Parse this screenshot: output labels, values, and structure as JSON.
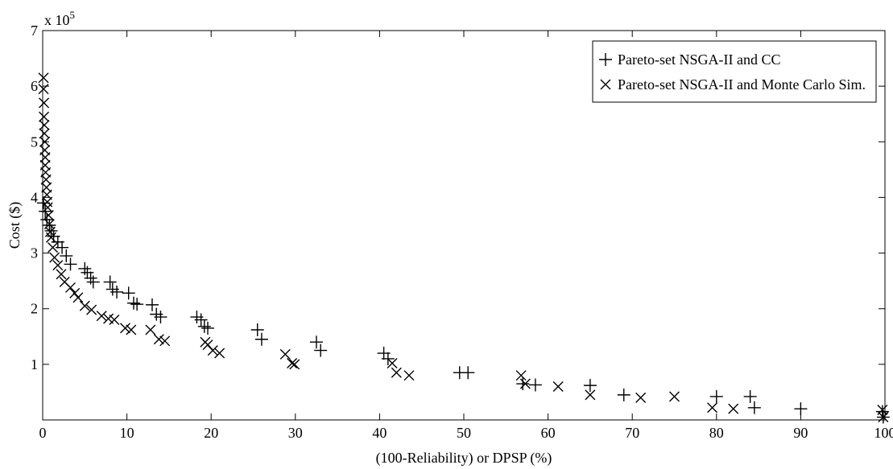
{
  "chart_data": {
    "type": "scatter",
    "title": "",
    "xlabel": "(100-Reliability) or DPSP (%)",
    "ylabel": "Cost ($)",
    "y_multiplier_label": "x 10",
    "y_multiplier_exponent": "5",
    "xlim": [
      0,
      100
    ],
    "ylim": [
      0,
      7
    ],
    "xticks": [
      "0",
      "10",
      "20",
      "30",
      "40",
      "50",
      "60",
      "70",
      "80",
      "90",
      "100"
    ],
    "yticks": [
      "1",
      "2",
      "3",
      "4",
      "5",
      "6",
      "7"
    ],
    "grid": false,
    "legend_position": "top-right",
    "series": [
      {
        "name": "Pareto-set NSGA-II and CC",
        "marker": "plus",
        "points": [
          [
            0.1,
            3.9
          ],
          [
            0.3,
            3.75
          ],
          [
            0.5,
            3.6
          ],
          [
            0.8,
            3.5
          ],
          [
            1.0,
            3.4
          ],
          [
            1.3,
            3.3
          ],
          [
            1.8,
            3.2
          ],
          [
            2.3,
            3.1
          ],
          [
            2.8,
            2.95
          ],
          [
            3.3,
            2.8
          ],
          [
            5.0,
            2.72
          ],
          [
            5.3,
            2.65
          ],
          [
            5.7,
            2.55
          ],
          [
            6.0,
            2.48
          ],
          [
            8.0,
            2.48
          ],
          [
            8.3,
            2.35
          ],
          [
            8.8,
            2.3
          ],
          [
            10.2,
            2.28
          ],
          [
            10.8,
            2.1
          ],
          [
            11.2,
            2.08
          ],
          [
            13.0,
            2.07
          ],
          [
            13.5,
            1.9
          ],
          [
            14.0,
            1.85
          ],
          [
            18.3,
            1.85
          ],
          [
            18.8,
            1.8
          ],
          [
            19.2,
            1.68
          ],
          [
            19.6,
            1.65
          ],
          [
            25.5,
            1.62
          ],
          [
            26.0,
            1.45
          ],
          [
            32.5,
            1.4
          ],
          [
            33.0,
            1.25
          ],
          [
            40.5,
            1.2
          ],
          [
            41.0,
            1.1
          ],
          [
            49.5,
            0.85
          ],
          [
            50.5,
            0.85
          ],
          [
            57.0,
            0.65
          ],
          [
            58.5,
            0.63
          ],
          [
            65.0,
            0.62
          ],
          [
            69.0,
            0.45
          ],
          [
            80.0,
            0.42
          ],
          [
            84.0,
            0.42
          ],
          [
            84.5,
            0.22
          ],
          [
            90.0,
            0.2
          ],
          [
            99.7,
            0.15
          ],
          [
            99.8,
            0.05
          ]
        ]
      },
      {
        "name": "Pareto-set NSGA-II and Monte Carlo Sim.",
        "marker": "cross",
        "points": [
          [
            0.1,
            6.15
          ],
          [
            0.1,
            5.95
          ],
          [
            0.15,
            5.7
          ],
          [
            0.15,
            5.45
          ],
          [
            0.2,
            5.3
          ],
          [
            0.2,
            5.15
          ],
          [
            0.25,
            5.0
          ],
          [
            0.25,
            4.85
          ],
          [
            0.3,
            4.72
          ],
          [
            0.3,
            4.58
          ],
          [
            0.35,
            4.45
          ],
          [
            0.4,
            4.32
          ],
          [
            0.45,
            4.18
          ],
          [
            0.5,
            4.05
          ],
          [
            0.55,
            3.92
          ],
          [
            0.6,
            3.82
          ],
          [
            0.7,
            3.68
          ],
          [
            0.8,
            3.52
          ],
          [
            0.9,
            3.38
          ],
          [
            1.0,
            3.28
          ],
          [
            1.2,
            3.1
          ],
          [
            1.4,
            2.92
          ],
          [
            1.8,
            2.78
          ],
          [
            2.2,
            2.62
          ],
          [
            2.6,
            2.48
          ],
          [
            3.3,
            2.38
          ],
          [
            3.8,
            2.28
          ],
          [
            4.2,
            2.2
          ],
          [
            5.0,
            2.05
          ],
          [
            5.8,
            1.98
          ],
          [
            7.0,
            1.87
          ],
          [
            7.8,
            1.82
          ],
          [
            8.5,
            1.8
          ],
          [
            9.8,
            1.65
          ],
          [
            10.5,
            1.62
          ],
          [
            12.8,
            1.62
          ],
          [
            13.8,
            1.45
          ],
          [
            14.5,
            1.42
          ],
          [
            19.3,
            1.4
          ],
          [
            19.6,
            1.35
          ],
          [
            20.2,
            1.25
          ],
          [
            21.0,
            1.2
          ],
          [
            28.8,
            1.18
          ],
          [
            29.6,
            1.02
          ],
          [
            29.9,
            1.0
          ],
          [
            41.5,
            1.02
          ],
          [
            42.0,
            0.85
          ],
          [
            43.5,
            0.8
          ],
          [
            56.8,
            0.8
          ],
          [
            57.3,
            0.65
          ],
          [
            61.2,
            0.6
          ],
          [
            65.0,
            0.45
          ],
          [
            71.0,
            0.4
          ],
          [
            75.0,
            0.42
          ],
          [
            79.5,
            0.22
          ],
          [
            82.0,
            0.2
          ],
          [
            99.7,
            0.18
          ],
          [
            99.8,
            0.05
          ]
        ]
      }
    ]
  }
}
